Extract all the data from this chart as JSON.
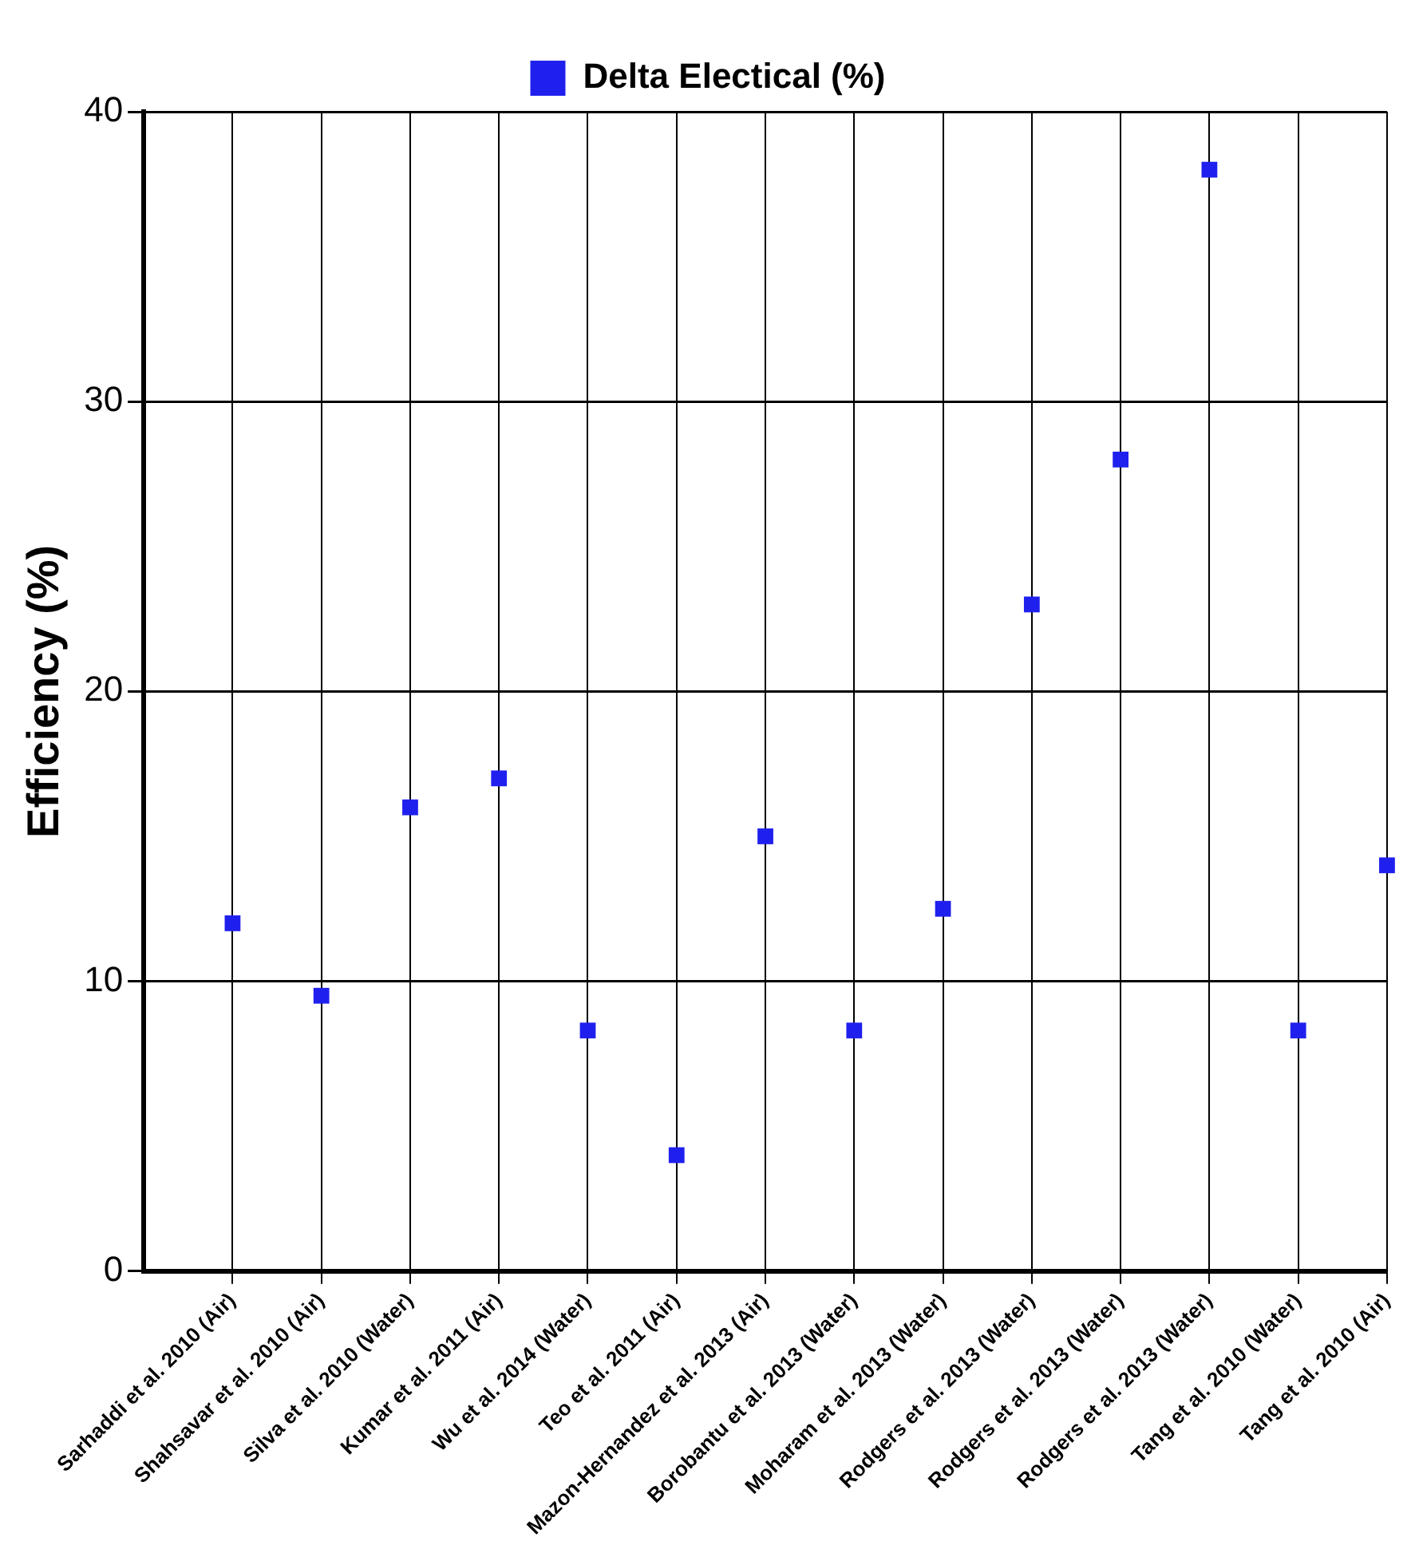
{
  "chart_data": {
    "type": "scatter",
    "ylabel": "Efficiency (%)",
    "categories": [
      "Sarhaddi et al. 2010 (Air)",
      "Shahsavar et al. 2010 (Air)",
      "Silva et al. 2010 (Water)",
      "Kumar et al. 2011 (Air)",
      "Wu et al. 2014 (Water)",
      "Teo et al. 2011 (Air)",
      "Mazon-Hernandez et al. 2013 (Air)",
      "Borobantu et al. 2013 (Water)",
      "Moharam et al. 2013 (Water)",
      "Rodgers et al. 2013 (Water)",
      "Rodgers et al. 2013 (Water)",
      "Rodgers et al. 2013 (Water)",
      "Tang et al. 2010 (Water)",
      "Tang et al. 2010 (Air)"
    ],
    "series": [
      {
        "name": "Delta Electical (%)",
        "color": "#2020ee",
        "values": [
          12,
          9.5,
          16,
          17,
          8.3,
          4,
          15,
          8.3,
          12.5,
          23,
          28,
          38,
          8.3,
          14
        ]
      }
    ],
    "ylim": [
      0,
      40
    ],
    "yticks": [
      0,
      10,
      20,
      30,
      40
    ],
    "grid": true,
    "legend": "top",
    "marker": "square"
  }
}
